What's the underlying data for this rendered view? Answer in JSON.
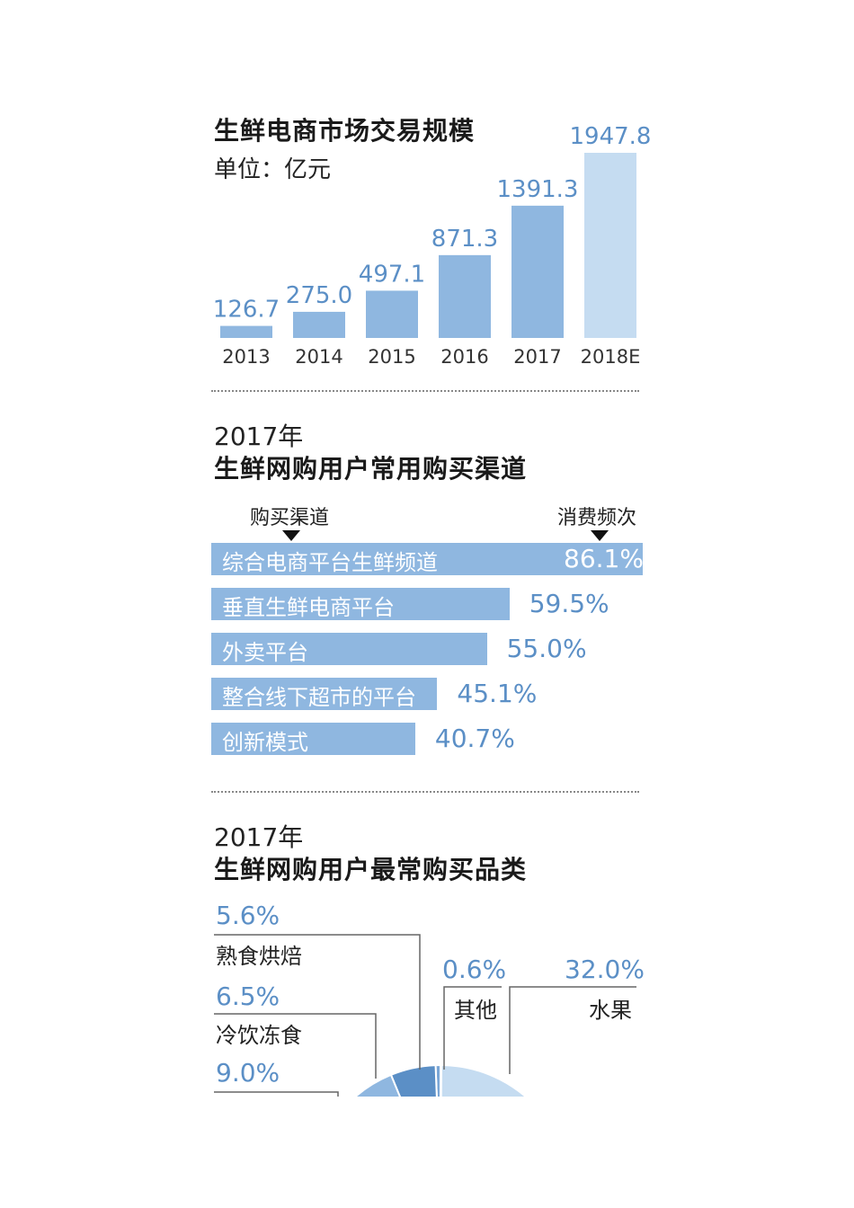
{
  "section1": {
    "title": "生鲜电商市场交易规模",
    "unit": "单位：亿元"
  },
  "section2": {
    "year": "2017年",
    "title": "生鲜网购用户常用购买渠道",
    "col_channel": "购买渠道",
    "col_freq": "消费频次"
  },
  "section3": {
    "year": "2017年",
    "title": "生鲜网购用户最常购买品类"
  },
  "colors": {
    "bar": "#8fb7e0",
    "bar_forecast": "#c5dcf1",
    "value_text": "#5b8fc6"
  },
  "chart_data": [
    {
      "type": "bar",
      "title": "生鲜电商市场交易规模",
      "subtitle": "单位：亿元",
      "categories": [
        "2013",
        "2014",
        "2015",
        "2016",
        "2017",
        "2018E"
      ],
      "values": [
        126.7,
        275.0,
        497.1,
        871.3,
        1391.3,
        1947.8
      ],
      "value_labels": [
        "126.7",
        "275.0",
        "497.1",
        "871.3",
        "1391.3",
        "1947.8"
      ],
      "grid": false
    },
    {
      "type": "bar",
      "orientation": "horizontal",
      "title": "生鲜网购用户常用购买渠道",
      "categories": [
        "综合电商平台生鲜频道",
        "垂直生鲜电商平台",
        "外卖平台",
        "整合线下超市的平台",
        "创新模式"
      ],
      "values": [
        86.1,
        59.5,
        55.0,
        45.1,
        40.7
      ],
      "value_labels": [
        "86.1%",
        "59.5%",
        "55.0%",
        "45.1%",
        "40.7%"
      ],
      "grid": false
    },
    {
      "type": "pie",
      "title": "生鲜网购用户最常购买品类",
      "categories": [
        "熟食烘焙",
        "冷饮冻食",
        "",
        "其他",
        "水果"
      ],
      "values": [
        5.6,
        6.5,
        9.0,
        0.6,
        32.0
      ],
      "value_labels": [
        "5.6%",
        "6.5%",
        "9.0%",
        "0.6%",
        "32.0%"
      ]
    }
  ]
}
